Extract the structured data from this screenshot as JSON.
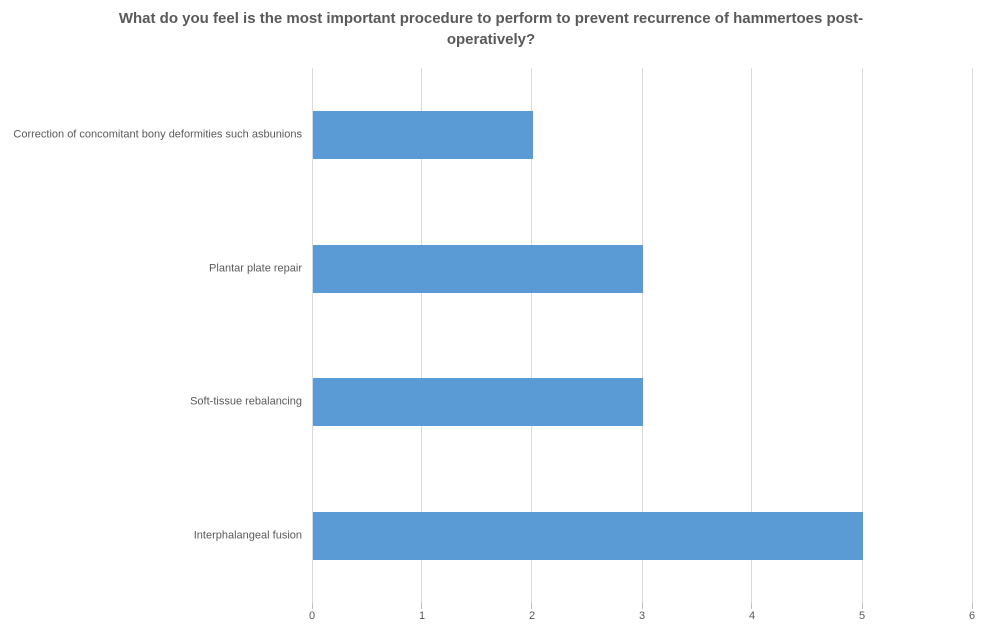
{
  "chart_data": {
    "type": "bar",
    "orientation": "horizontal",
    "title": "What do you feel is the most important procedure to perform to prevent recurrence of hammertoes post-operatively?",
    "categories": [
      "Correction of concomitant bony deformities such asbunions",
      "Plantar plate repair",
      "Soft-tissue rebalancing",
      "Interphalangeal fusion"
    ],
    "values": [
      2,
      3,
      3,
      5
    ],
    "xlabel": "",
    "ylabel": "",
    "xlim": [
      0,
      6
    ],
    "x_ticks": [
      0,
      1,
      2,
      3,
      4,
      5,
      6
    ],
    "grid": "vertical",
    "legend": "none",
    "colors": {
      "bar": "#5B9BD5",
      "gridline": "#D9D9D9",
      "tick_mark": "#BFBFBF",
      "text": "#595959",
      "background": "#FFFFFF"
    }
  }
}
